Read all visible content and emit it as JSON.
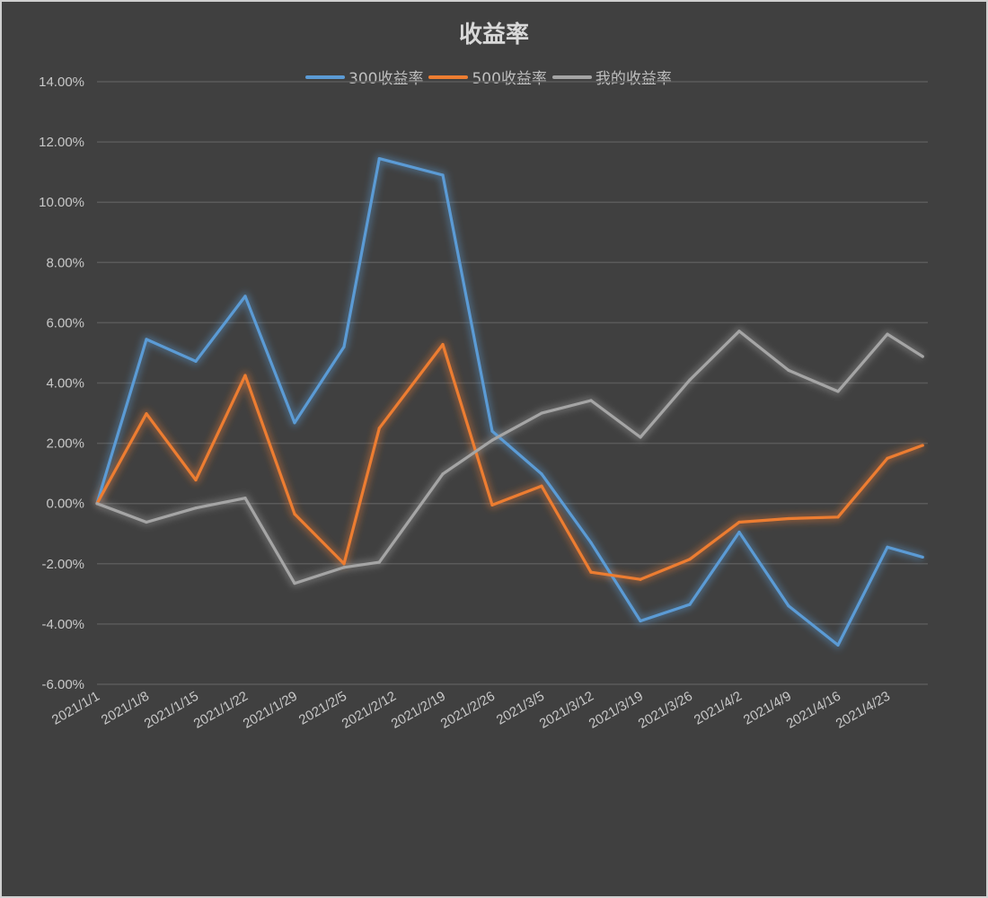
{
  "chart_data": {
    "type": "line",
    "title": "收益率",
    "xlabel": "",
    "ylabel": "",
    "ylim": [
      -0.06,
      0.14
    ],
    "y_ticks": [
      "14.00%",
      "12.00%",
      "10.00%",
      "8.00%",
      "6.00%",
      "4.00%",
      "2.00%",
      "0.00%",
      "-2.00%",
      "-4.00%",
      "-6.00%"
    ],
    "x_tick_labels": [
      "2021/1/1",
      "2021/1/8",
      "2021/1/15",
      "2021/1/22",
      "2021/1/29",
      "2021/2/5",
      "2021/2/12",
      "2021/2/19",
      "2021/2/26",
      "2021/3/5",
      "2021/3/12",
      "2021/3/19",
      "2021/3/26",
      "2021/4/2",
      "2021/4/9",
      "2021/4/16",
      "2021/4/23"
    ],
    "x_days_from_start": [
      0,
      7,
      14,
      21,
      28,
      35,
      40,
      49,
      56,
      63,
      70,
      77,
      84,
      91,
      98,
      105,
      112,
      117
    ],
    "grid": true,
    "legend_position": "top",
    "series": [
      {
        "name": "300收益率",
        "color": "#5b9bd5",
        "values": [
          0,
          0.0545,
          0.0472,
          0.0688,
          0.0268,
          0.052,
          0.1145,
          0.109,
          0.024,
          0.0098,
          -0.013,
          -0.039,
          -0.0335,
          -0.0095,
          -0.034,
          -0.047,
          -0.0145,
          -0.0178
        ]
      },
      {
        "name": "500收益率",
        "color": "#ed7d31",
        "values": [
          0,
          0.0298,
          0.0078,
          0.0425,
          -0.0035,
          -0.02,
          0.025,
          0.0528,
          -0.0005,
          0.0058,
          -0.0228,
          -0.0252,
          -0.0185,
          -0.0062,
          -0.005,
          -0.0045,
          0.015,
          0.0193
        ]
      },
      {
        "name": "我的收益率",
        "color": "#a5a5a5",
        "values": [
          0,
          -0.0062,
          -0.0015,
          0.0018,
          -0.0265,
          -0.0212,
          -0.0195,
          0.0098,
          0.021,
          0.03,
          0.0342,
          0.022,
          0.041,
          0.0572,
          0.0442,
          0.0372,
          0.0562,
          0.0488
        ]
      }
    ]
  }
}
